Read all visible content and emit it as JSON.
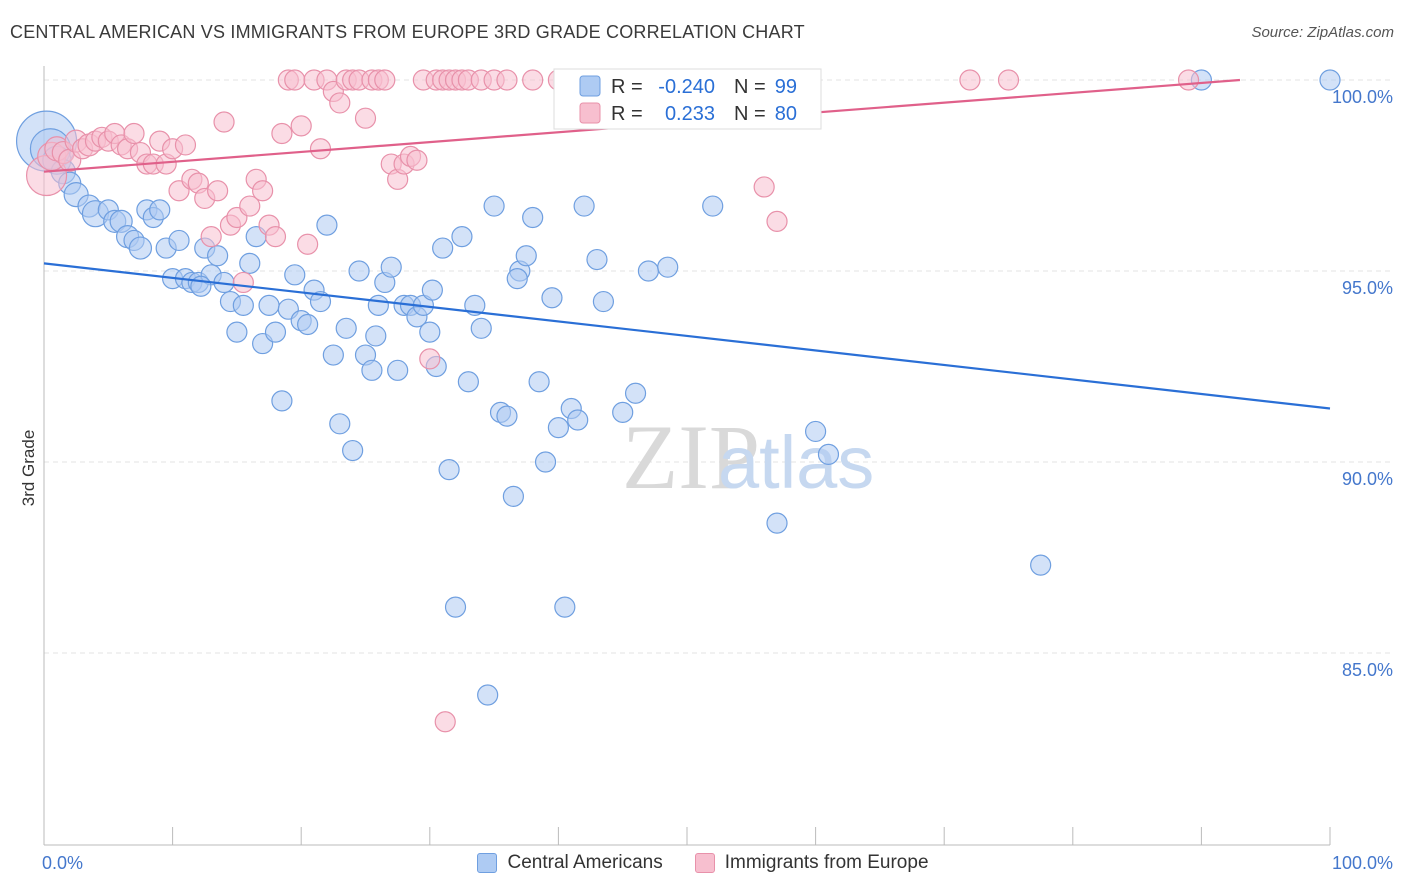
{
  "header": {
    "title": "CENTRAL AMERICAN VS IMMIGRANTS FROM EUROPE 3RD GRADE CORRELATION CHART",
    "source": "Source: ZipAtlas.com"
  },
  "watermark": {
    "zip": "ZIP",
    "atlas": "atlas"
  },
  "chart_data": {
    "type": "scatter",
    "title": "CENTRAL AMERICAN VS IMMIGRANTS FROM EUROPE 3RD GRADE CORRELATION CHART",
    "xlabel": "",
    "ylabel": "3rd Grade",
    "xlim": [
      0,
      100
    ],
    "ylim": [
      80.5,
      100.7
    ],
    "x_tick_labels": [
      "0.0%",
      "100.0%"
    ],
    "y_ticks": [
      85,
      90,
      95,
      100
    ],
    "y_tick_labels": [
      "85.0%",
      "90.0%",
      "95.0%",
      "100.0%"
    ],
    "grid": true,
    "legend_placement": "top-center",
    "legend": [
      {
        "r_label": "R =",
        "r_value": "-0.240",
        "n_label": "N =",
        "n_value": "99"
      },
      {
        "r_label": "R =",
        "r_value": "0.233",
        "n_label": "N = ",
        "n_value": "80"
      }
    ],
    "series": [
      {
        "name": "Central Americans",
        "color": "#6f9fe0",
        "fill": "#aecbf3",
        "trend_color": "#2a6fd6",
        "trend": {
          "x": [
            0,
            100
          ],
          "y": [
            95.2,
            91.4
          ]
        },
        "points": [
          [
            0.2,
            98.4,
            30
          ],
          [
            0.5,
            98.2,
            20
          ],
          [
            1,
            97.9,
            14
          ],
          [
            1.5,
            97.6,
            12
          ],
          [
            2,
            97.3,
            11
          ],
          [
            2.5,
            97.0,
            12
          ],
          [
            3.5,
            96.7,
            11
          ],
          [
            4,
            96.5,
            13
          ],
          [
            5,
            96.6,
            10
          ],
          [
            5.5,
            96.3,
            11
          ],
          [
            6,
            96.3,
            11
          ],
          [
            6.5,
            95.9,
            11
          ],
          [
            7,
            95.8,
            10
          ],
          [
            7.5,
            95.6,
            11
          ],
          [
            8,
            96.6,
            10
          ],
          [
            8.5,
            96.4,
            10
          ],
          [
            9,
            96.6,
            10
          ],
          [
            9.5,
            95.6,
            10
          ],
          [
            10,
            94.8,
            10
          ],
          [
            10.5,
            95.8,
            10
          ],
          [
            11,
            94.8,
            10
          ],
          [
            11.5,
            94.7,
            10
          ],
          [
            12,
            94.7,
            10
          ],
          [
            12.5,
            95.6,
            10
          ],
          [
            13,
            94.9,
            10
          ],
          [
            13.5,
            95.4,
            10
          ],
          [
            14,
            94.7,
            10
          ],
          [
            14.5,
            94.2,
            10
          ],
          [
            15,
            93.4,
            10
          ],
          [
            15.5,
            94.1,
            10
          ],
          [
            16,
            95.2,
            10
          ],
          [
            16.5,
            95.9,
            10
          ],
          [
            17,
            93.1,
            10
          ],
          [
            17.5,
            94.1,
            10
          ],
          [
            18,
            93.4,
            10
          ],
          [
            18.5,
            91.6,
            10
          ],
          [
            19,
            94.0,
            10
          ],
          [
            19.5,
            94.9,
            10
          ],
          [
            20,
            93.7,
            10
          ],
          [
            21,
            94.5,
            10
          ],
          [
            21.5,
            94.2,
            10
          ],
          [
            22,
            96.2,
            10
          ],
          [
            22.5,
            92.8,
            10
          ],
          [
            23,
            91.0,
            10
          ],
          [
            23.5,
            93.5,
            10
          ],
          [
            24,
            90.3,
            10
          ],
          [
            24.5,
            95.0,
            10
          ],
          [
            25,
            92.8,
            10
          ],
          [
            25.5,
            92.4,
            10
          ],
          [
            26,
            94.1,
            10
          ],
          [
            26.5,
            94.7,
            10
          ],
          [
            27,
            95.1,
            10
          ],
          [
            27.5,
            92.4,
            10
          ],
          [
            28,
            94.1,
            10
          ],
          [
            28.5,
            94.1,
            10
          ],
          [
            29,
            93.8,
            10
          ],
          [
            29.5,
            94.1,
            10
          ],
          [
            30,
            93.4,
            10
          ],
          [
            30.5,
            92.5,
            10
          ],
          [
            31,
            95.6,
            10
          ],
          [
            31.5,
            89.8,
            10
          ],
          [
            32,
            86.2,
            10
          ],
          [
            32.5,
            95.9,
            10
          ],
          [
            33,
            92.1,
            10
          ],
          [
            33.5,
            94.1,
            10
          ],
          [
            34,
            93.5,
            10
          ],
          [
            34.5,
            83.9,
            10
          ],
          [
            35,
            96.7,
            10
          ],
          [
            35.5,
            91.3,
            10
          ],
          [
            36,
            91.2,
            10
          ],
          [
            36.5,
            89.1,
            10
          ],
          [
            37,
            95.0,
            10
          ],
          [
            37.5,
            95.4,
            10
          ],
          [
            38,
            96.4,
            10
          ],
          [
            38.5,
            92.1,
            10
          ],
          [
            39,
            90.0,
            10
          ],
          [
            39.5,
            94.3,
            10
          ],
          [
            40,
            90.9,
            10
          ],
          [
            40.5,
            86.2,
            10
          ],
          [
            41,
            91.4,
            10
          ],
          [
            41.5,
            91.1,
            10
          ],
          [
            42,
            96.7,
            10
          ],
          [
            43,
            95.3,
            10
          ],
          [
            45,
            91.3,
            10
          ],
          [
            46,
            91.8,
            10
          ],
          [
            47,
            95.0,
            10
          ],
          [
            48.5,
            95.1,
            10
          ],
          [
            52,
            96.7,
            10
          ],
          [
            57,
            88.4,
            10
          ],
          [
            60,
            90.8,
            10
          ],
          [
            61,
            90.2,
            10
          ],
          [
            77.5,
            87.3,
            10
          ],
          [
            90,
            100.0,
            10
          ],
          [
            100,
            100.0,
            10
          ],
          [
            12.2,
            94.6,
            10
          ],
          [
            20.5,
            93.6,
            10
          ],
          [
            25.8,
            93.3,
            10
          ],
          [
            30.2,
            94.5,
            10
          ],
          [
            36.8,
            94.8,
            10
          ],
          [
            43.5,
            94.2,
            10
          ]
        ]
      },
      {
        "name": "Immigrants from Europe",
        "color": "#e891aa",
        "fill": "#f7bfcf",
        "trend_color": "#e0608a",
        "trend": {
          "x": [
            0,
            93
          ],
          "y": [
            97.6,
            100.0
          ]
        },
        "points": [
          [
            0.2,
            97.5,
            20
          ],
          [
            0.6,
            98.0,
            14
          ],
          [
            1,
            98.2,
            12
          ],
          [
            1.5,
            98.1,
            11
          ],
          [
            2,
            97.9,
            11
          ],
          [
            2.5,
            98.4,
            11
          ],
          [
            3,
            98.2,
            10
          ],
          [
            3.5,
            98.3,
            11
          ],
          [
            4,
            98.4,
            10
          ],
          [
            4.5,
            98.5,
            10
          ],
          [
            5,
            98.4,
            10
          ],
          [
            5.5,
            98.6,
            10
          ],
          [
            6,
            98.3,
            10
          ],
          [
            6.5,
            98.2,
            10
          ],
          [
            7,
            98.6,
            10
          ],
          [
            7.5,
            98.1,
            10
          ],
          [
            8,
            97.8,
            10
          ],
          [
            8.5,
            97.8,
            10
          ],
          [
            9,
            98.4,
            10
          ],
          [
            9.5,
            97.8,
            10
          ],
          [
            10,
            98.2,
            10
          ],
          [
            10.5,
            97.1,
            10
          ],
          [
            11,
            98.3,
            10
          ],
          [
            11.5,
            97.4,
            10
          ],
          [
            12,
            97.3,
            10
          ],
          [
            12.5,
            96.9,
            10
          ],
          [
            13,
            95.9,
            10
          ],
          [
            13.5,
            97.1,
            10
          ],
          [
            14,
            98.9,
            10
          ],
          [
            14.5,
            96.2,
            10
          ],
          [
            15,
            96.4,
            10
          ],
          [
            15.5,
            94.7,
            10
          ],
          [
            16,
            96.7,
            10
          ],
          [
            16.5,
            97.4,
            10
          ],
          [
            17,
            97.1,
            10
          ],
          [
            17.5,
            96.2,
            10
          ],
          [
            18,
            95.9,
            10
          ],
          [
            18.5,
            98.6,
            10
          ],
          [
            19,
            100.0,
            10
          ],
          [
            19.5,
            100.0,
            10
          ],
          [
            20,
            98.8,
            10
          ],
          [
            20.5,
            95.7,
            10
          ],
          [
            21,
            100.0,
            10
          ],
          [
            21.5,
            98.2,
            10
          ],
          [
            22,
            100.0,
            10
          ],
          [
            22.5,
            99.7,
            10
          ],
          [
            23,
            99.4,
            10
          ],
          [
            23.5,
            100.0,
            10
          ],
          [
            24,
            100.0,
            10
          ],
          [
            24.5,
            100.0,
            10
          ],
          [
            25,
            99.0,
            10
          ],
          [
            25.5,
            100.0,
            10
          ],
          [
            26,
            100.0,
            10
          ],
          [
            26.5,
            100.0,
            10
          ],
          [
            27,
            97.8,
            10
          ],
          [
            27.5,
            97.4,
            10
          ],
          [
            28,
            97.8,
            10
          ],
          [
            28.5,
            98.0,
            10
          ],
          [
            29,
            97.9,
            10
          ],
          [
            29.5,
            100.0,
            10
          ],
          [
            30,
            92.7,
            10
          ],
          [
            30.5,
            100.0,
            10
          ],
          [
            31,
            100.0,
            10
          ],
          [
            31.5,
            100.0,
            10
          ],
          [
            32,
            100.0,
            10
          ],
          [
            32.5,
            100.0,
            10
          ],
          [
            33,
            100.0,
            10
          ],
          [
            34,
            100.0,
            10
          ],
          [
            35,
            100.0,
            10
          ],
          [
            36,
            100.0,
            10
          ],
          [
            38,
            100.0,
            10
          ],
          [
            40,
            100.0,
            10
          ],
          [
            45,
            100.0,
            10
          ],
          [
            50,
            100.0,
            10
          ],
          [
            56,
            97.2,
            10
          ],
          [
            57,
            96.3,
            10
          ],
          [
            72,
            100.0,
            10
          ],
          [
            75,
            100.0,
            10
          ],
          [
            89,
            100.0,
            10
          ],
          [
            31.2,
            83.2,
            10
          ]
        ]
      }
    ]
  }
}
